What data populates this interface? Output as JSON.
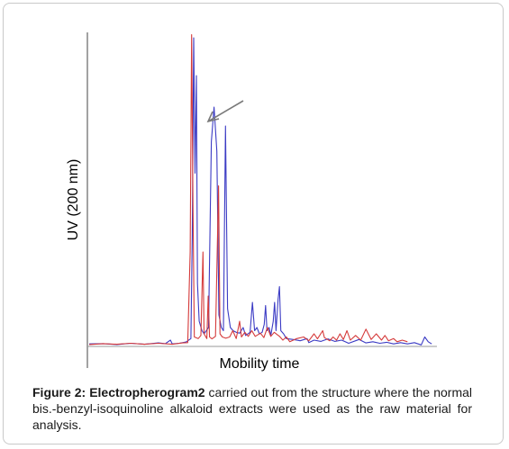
{
  "chart_data": {
    "type": "line",
    "title": "",
    "xlabel": "Mobility time",
    "ylabel": "UV (200 nm)",
    "xlim": [
      0,
      100
    ],
    "ylim": [
      0,
      100
    ],
    "grid": false,
    "legend": "none",
    "annotations": [
      {
        "type": "arrow",
        "target_series": "blue",
        "x": 35,
        "y": 71
      }
    ],
    "series": [
      {
        "color": "#3b3bc4",
        "points": [
          [
            0,
            0.8
          ],
          [
            4,
            0.9
          ],
          [
            8,
            0.6
          ],
          [
            12,
            1.0
          ],
          [
            16,
            0.7
          ],
          [
            20,
            1.1
          ],
          [
            22,
            0.9
          ],
          [
            23.5,
            2.0
          ],
          [
            24,
            0.8
          ],
          [
            26,
            1.0
          ],
          [
            28,
            1.4
          ],
          [
            29.4,
            2.5
          ],
          [
            29.8,
            35
          ],
          [
            30.2,
            98
          ],
          [
            30.6,
            55
          ],
          [
            31.0,
            86
          ],
          [
            31.3,
            20
          ],
          [
            31.8,
            8
          ],
          [
            32.6,
            5
          ],
          [
            33.2,
            4
          ],
          [
            34.5,
            6
          ],
          [
            35.3,
            65
          ],
          [
            36.1,
            76
          ],
          [
            36.9,
            62
          ],
          [
            37.5,
            10
          ],
          [
            38.2,
            6
          ],
          [
            38.8,
            5
          ],
          [
            39.4,
            70
          ],
          [
            40.0,
            12
          ],
          [
            40.8,
            6
          ],
          [
            41.6,
            5
          ],
          [
            42.5,
            4.5
          ],
          [
            43.5,
            4.2
          ],
          [
            44.5,
            6
          ],
          [
            45.2,
            3.5
          ],
          [
            46.5,
            4.5
          ],
          [
            47.2,
            14
          ],
          [
            47.8,
            5
          ],
          [
            48.5,
            6
          ],
          [
            49.2,
            4
          ],
          [
            50.0,
            4.5
          ],
          [
            50.6,
            7
          ],
          [
            51.0,
            13
          ],
          [
            51.4,
            5
          ],
          [
            52.0,
            6
          ],
          [
            52.5,
            3.5
          ],
          [
            53.2,
            8
          ],
          [
            53.6,
            14
          ],
          [
            54.0,
            5
          ],
          [
            54.6,
            15
          ],
          [
            55.0,
            19
          ],
          [
            55.4,
            5
          ],
          [
            56.2,
            4
          ],
          [
            57.0,
            2.5
          ],
          [
            59.0,
            2.2
          ],
          [
            61.0,
            1.8
          ],
          [
            63.0,
            2.5
          ],
          [
            63.5,
            1.2
          ],
          [
            65.0,
            2.0
          ],
          [
            67.0,
            1.6
          ],
          [
            69.0,
            2.4
          ],
          [
            71.0,
            1.6
          ],
          [
            73.0,
            2.0
          ],
          [
            75.0,
            1.0
          ],
          [
            78.0,
            2.2
          ],
          [
            80.0,
            1.1
          ],
          [
            82.0,
            1.5
          ],
          [
            84.0,
            1.0
          ],
          [
            86.0,
            1.3
          ],
          [
            88.0,
            0.8
          ],
          [
            90.0,
            1.2
          ],
          [
            92.0,
            0.8
          ],
          [
            94.0,
            1.2
          ],
          [
            96.0,
            0.5
          ],
          [
            97.0,
            3.0
          ],
          [
            98.0,
            1.5
          ],
          [
            99.0,
            0.8
          ]
        ]
      },
      {
        "color": "#d53a3a",
        "points": [
          [
            0,
            0.6
          ],
          [
            4,
            0.9
          ],
          [
            8,
            0.7
          ],
          [
            12,
            1.0
          ],
          [
            16,
            0.7
          ],
          [
            20,
            1.0
          ],
          [
            24,
            0.7
          ],
          [
            27,
            1.1
          ],
          [
            28.5,
            1.2
          ],
          [
            29.2,
            30
          ],
          [
            29.6,
            99
          ],
          [
            30.0,
            45
          ],
          [
            30.4,
            3
          ],
          [
            31.5,
            2.5
          ],
          [
            32.3,
            3.5
          ],
          [
            32.9,
            30
          ],
          [
            33.2,
            4
          ],
          [
            34.0,
            2.5
          ],
          [
            34.4,
            16
          ],
          [
            34.8,
            3
          ],
          [
            35.5,
            2.4
          ],
          [
            36.5,
            3.2
          ],
          [
            37.4,
            51
          ],
          [
            37.8,
            4
          ],
          [
            38.5,
            3
          ],
          [
            39.5,
            2.6
          ],
          [
            40.6,
            3
          ],
          [
            41.5,
            5
          ],
          [
            42.5,
            2.5
          ],
          [
            43.5,
            8
          ],
          [
            44.0,
            3
          ],
          [
            45.0,
            4.5
          ],
          [
            46.0,
            3.2
          ],
          [
            47.0,
            5
          ],
          [
            48.0,
            3.2
          ],
          [
            49.5,
            4.2
          ],
          [
            50.5,
            2.8
          ],
          [
            51.5,
            6
          ],
          [
            52.5,
            3.2
          ],
          [
            53.5,
            4.5
          ],
          [
            55.0,
            3.2
          ],
          [
            56.0,
            2.0
          ],
          [
            57.0,
            3.0
          ],
          [
            58.0,
            1.5
          ],
          [
            60.0,
            2.5
          ],
          [
            62.0,
            3.0
          ],
          [
            63.5,
            1.8
          ],
          [
            65.0,
            4.0
          ],
          [
            66.0,
            2.4
          ],
          [
            67.5,
            5.0
          ],
          [
            68.0,
            2.8
          ],
          [
            69.5,
            1.8
          ],
          [
            70.5,
            3.0
          ],
          [
            71.5,
            2.0
          ],
          [
            72.5,
            4.0
          ],
          [
            73.5,
            2.2
          ],
          [
            74.5,
            5.0
          ],
          [
            75.5,
            2.0
          ],
          [
            77.0,
            3.5
          ],
          [
            78.5,
            2.0
          ],
          [
            80.0,
            5.5
          ],
          [
            81.5,
            2.2
          ],
          [
            83.0,
            4.0
          ],
          [
            84.5,
            2.0
          ],
          [
            85.5,
            3.5
          ],
          [
            86.5,
            1.8
          ],
          [
            88.0,
            2.5
          ],
          [
            89.0,
            1.5
          ],
          [
            90.5,
            2.0
          ],
          [
            92.0,
            1.5
          ]
        ]
      }
    ]
  },
  "caption": {
    "label": "Figure 2:",
    "emphasis": "Electropherogram2",
    "text": " carried out from the structure where the normal bis.-benzyl-isoquinoline alkaloid extracts were used as the raw material for analysis."
  }
}
